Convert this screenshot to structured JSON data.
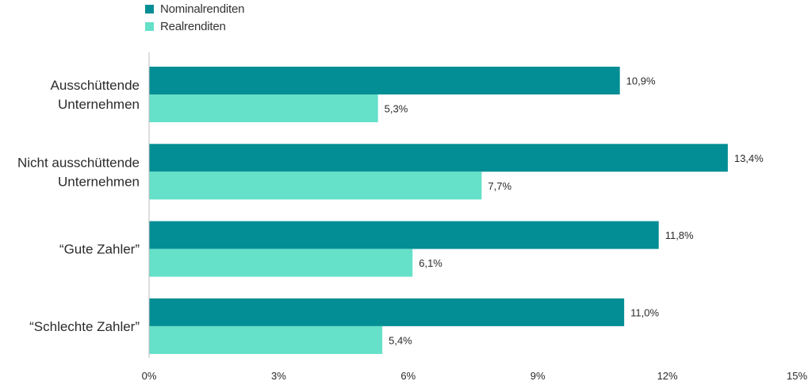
{
  "legend": {
    "nominal": "Nominalrenditen",
    "real": "Realrenditen"
  },
  "colors": {
    "nominal": "#038e95",
    "real": "#65e0c9",
    "axis": "#bdbdbd"
  },
  "chart_data": {
    "type": "bar",
    "orientation": "horizontal",
    "categories": [
      [
        "Ausschüttende",
        "Unternehmen"
      ],
      [
        "Nicht ausschüttende",
        "Unternehmen"
      ],
      [
        "“Gute Zahler”"
      ],
      [
        "“Schlechte Zahler”"
      ]
    ],
    "series": [
      {
        "name": "Nominalrenditen",
        "values": [
          10.9,
          13.4,
          11.8,
          11.0
        ],
        "labels": [
          "10,9%",
          "13,4%",
          "11,8%",
          "11,0%"
        ]
      },
      {
        "name": "Realrenditen",
        "values": [
          5.3,
          7.7,
          6.1,
          5.4
        ],
        "labels": [
          "5,3%",
          "7,7%",
          "6,1%",
          "5,4%"
        ]
      }
    ],
    "xlim": [
      0,
      15
    ],
    "xticks": [
      0,
      3,
      6,
      9,
      12,
      15
    ],
    "xtick_labels": [
      "0%",
      "3%",
      "6%",
      "9%",
      "12%",
      "15%"
    ],
    "grid": false,
    "legend_position": "top-left"
  }
}
